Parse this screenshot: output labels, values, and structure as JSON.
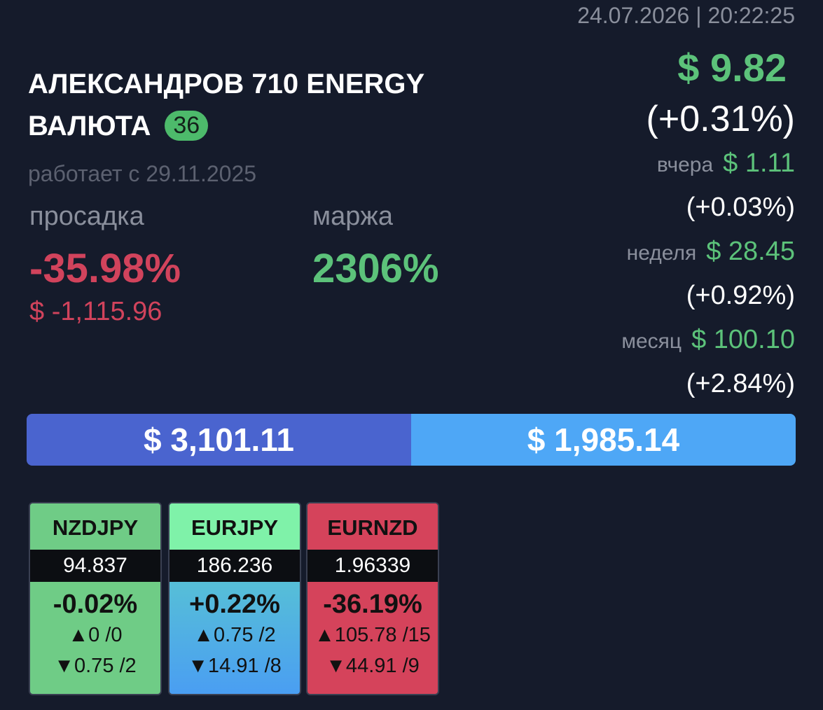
{
  "header": {
    "timestamp": "24.07.2026 | 20:22:25",
    "title_line1": "АЛЕКСАНДРОВ 710 ENERGY",
    "title_line2": "ВАЛЮТА",
    "badge": "36",
    "since": "работает с 29.11.2025"
  },
  "stats": {
    "drawdown": {
      "label": "просадка",
      "percent": "-35.98%",
      "amount": "$ -1,115.96"
    },
    "margin": {
      "label": "маржа",
      "value": "2306%"
    }
  },
  "profit": {
    "total": "$ 9.82",
    "total_change": "(+0.31%)",
    "periods": [
      {
        "label": "вчера",
        "amount": "$ 1.11",
        "change": "(+0.03%)"
      },
      {
        "label": "неделя",
        "amount": "$ 28.45",
        "change": "(+0.92%)"
      },
      {
        "label": "месяц",
        "amount": "$ 100.10",
        "change": "(+2.84%)"
      }
    ]
  },
  "balance_bar": {
    "left": "$ 3,101.11",
    "right": "$ 1,985.14"
  },
  "pairs": [
    {
      "symbol": "NZDJPY",
      "price": "94.837",
      "change": "-0.02%",
      "up": "▲0 /0",
      "down": "▼0.75 /2"
    },
    {
      "symbol": "EURJPY",
      "price": "186.236",
      "change": "+0.22%",
      "up": "▲0.75 /2",
      "down": "▼14.91 /8"
    },
    {
      "symbol": "EURNZD",
      "price": "1.96339",
      "change": "-36.19%",
      "up": "▲105.78 /15",
      "down": "▼44.91 /9"
    }
  ]
}
